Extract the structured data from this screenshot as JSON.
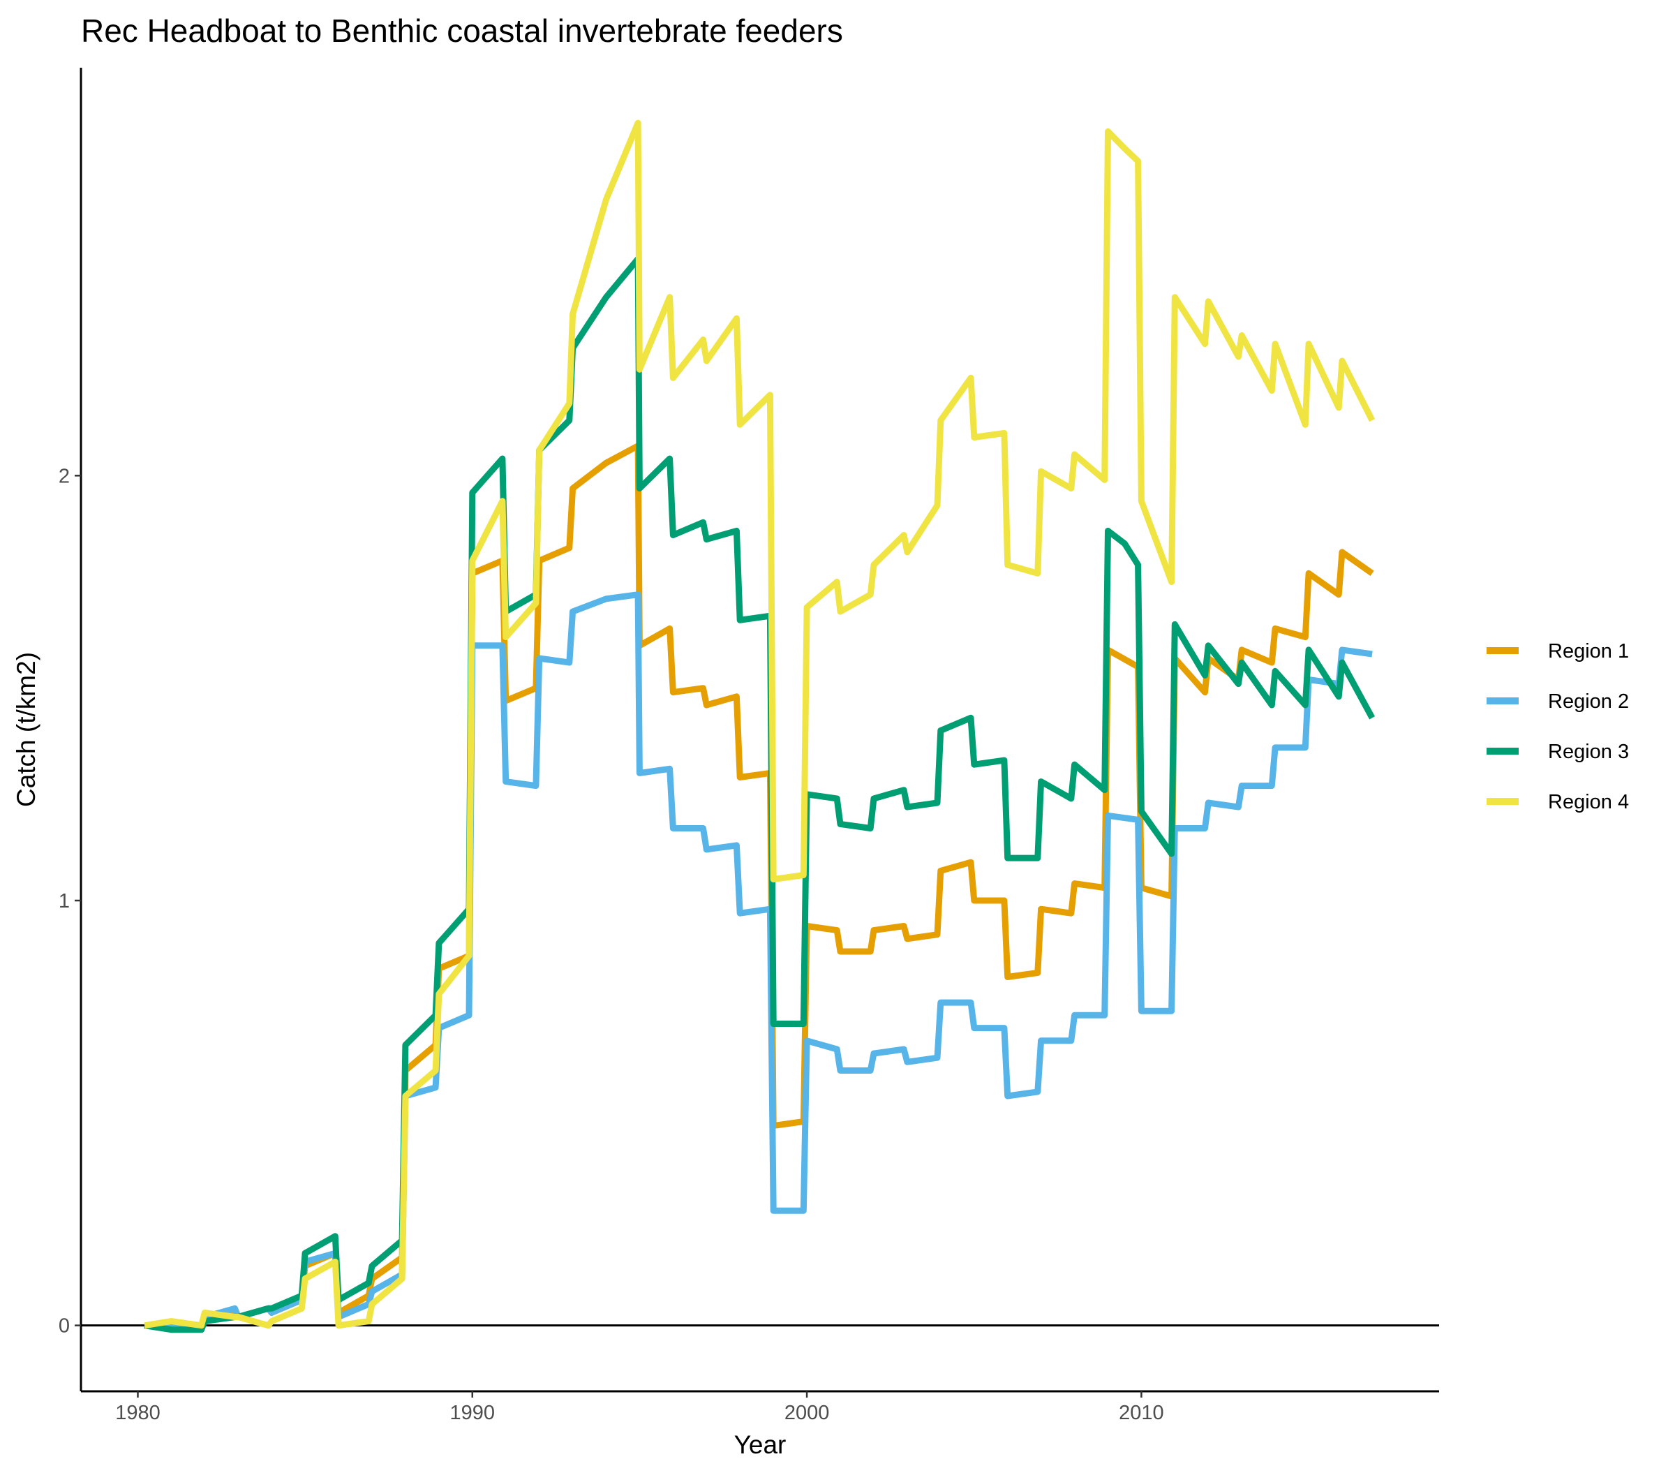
{
  "chart_data": {
    "type": "line",
    "title": "Rec Headboat to Benthic coastal invertebrate feeders",
    "xlabel": "Year",
    "ylabel": "Catch (t/km2)",
    "xlim": [
      1978.3,
      2018.9
    ],
    "ylim": [
      -0.155,
      2.96
    ],
    "xticks": [
      1980,
      1990,
      2000,
      2010
    ],
    "yticks": [
      0,
      1,
      2
    ],
    "hline": 0,
    "grid": false,
    "legend_position": "right",
    "series": [
      {
        "name": "Region 1",
        "color": "#E69F00",
        "x": [
          1980.2,
          1981.0,
          1981.9,
          1982.0,
          1982.9,
          1983.0,
          1983.9,
          1984.0,
          1984.9,
          1985.0,
          1985.9,
          1986.0,
          1986.9,
          1987.0,
          1987.9,
          1988.0,
          1988.9,
          1989.0,
          1989.9,
          1990.0,
          1990.9,
          1991.0,
          1991.9,
          1992.0,
          1992.9,
          1993.0,
          1994.0,
          1994.95,
          1995.0,
          1995.9,
          1996.0,
          1996.9,
          1997.0,
          1997.9,
          1998.0,
          1998.9,
          1999.0,
          1999.9,
          2000.0,
          2000.9,
          2001.0,
          2001.9,
          2002.0,
          2002.9,
          2003.0,
          2003.9,
          2004.0,
          2004.9,
          2005.0,
          2005.9,
          2006.0,
          2006.9,
          2007.0,
          2007.9,
          2008.0,
          2008.9,
          2009.0,
          2009.9,
          2010.0,
          2010.9,
          2011.0,
          2011.9,
          2012.0,
          2012.9,
          2013.0,
          2013.9,
          2014.0,
          2014.9,
          2015.0,
          2015.9,
          2016.0,
          2016.9
        ],
        "values": [
          0.0,
          0.0,
          0.0,
          0.02,
          0.03,
          0.02,
          0.04,
          0.03,
          0.06,
          0.14,
          0.17,
          0.03,
          0.07,
          0.11,
          0.16,
          0.6,
          0.66,
          0.84,
          0.87,
          1.77,
          1.8,
          1.47,
          1.5,
          1.8,
          1.83,
          1.97,
          2.03,
          2.07,
          1.6,
          1.64,
          1.49,
          1.5,
          1.46,
          1.48,
          1.29,
          1.3,
          0.47,
          0.48,
          0.94,
          0.93,
          0.88,
          0.88,
          0.93,
          0.94,
          0.91,
          0.92,
          1.07,
          1.09,
          1.0,
          1.0,
          0.82,
          0.83,
          0.98,
          0.97,
          1.04,
          1.03,
          1.59,
          1.55,
          1.03,
          1.01,
          1.57,
          1.49,
          1.57,
          1.52,
          1.59,
          1.56,
          1.64,
          1.62,
          1.77,
          1.72,
          1.82,
          1.77
        ]
      },
      {
        "name": "Region 2",
        "color": "#56B4E9",
        "x": [
          1980.2,
          1981.0,
          1981.9,
          1982.0,
          1982.9,
          1983.0,
          1983.9,
          1984.0,
          1984.9,
          1985.0,
          1985.9,
          1986.0,
          1986.9,
          1987.0,
          1987.9,
          1988.0,
          1988.9,
          1989.0,
          1989.9,
          1990.0,
          1990.9,
          1991.0,
          1991.9,
          1992.0,
          1992.9,
          1993.0,
          1994.0,
          1994.95,
          1995.0,
          1995.9,
          1996.0,
          1996.9,
          1997.0,
          1997.9,
          1998.0,
          1998.9,
          1999.0,
          1999.9,
          2000.0,
          2000.9,
          2001.0,
          2001.9,
          2002.0,
          2002.9,
          2003.0,
          2003.9,
          2004.0,
          2004.9,
          2005.0,
          2005.9,
          2006.0,
          2006.9,
          2007.0,
          2007.9,
          2008.0,
          2008.9,
          2009.0,
          2009.9,
          2010.0,
          2010.9,
          2011.0,
          2011.9,
          2012.0,
          2012.9,
          2013.0,
          2013.9,
          2014.0,
          2014.9,
          2015.0,
          2015.9,
          2016.0,
          2016.9
        ],
        "values": [
          0.0,
          0.0,
          0.0,
          0.02,
          0.04,
          0.02,
          0.04,
          0.03,
          0.06,
          0.15,
          0.17,
          0.02,
          0.05,
          0.08,
          0.12,
          0.54,
          0.56,
          0.7,
          0.73,
          1.6,
          1.6,
          1.28,
          1.27,
          1.57,
          1.56,
          1.68,
          1.71,
          1.72,
          1.3,
          1.31,
          1.17,
          1.17,
          1.12,
          1.13,
          0.97,
          0.98,
          0.27,
          0.27,
          0.67,
          0.65,
          0.6,
          0.6,
          0.64,
          0.65,
          0.62,
          0.63,
          0.76,
          0.76,
          0.7,
          0.7,
          0.54,
          0.55,
          0.67,
          0.67,
          0.73,
          0.73,
          1.2,
          1.19,
          0.74,
          0.74,
          1.17,
          1.17,
          1.23,
          1.22,
          1.27,
          1.27,
          1.36,
          1.36,
          1.52,
          1.51,
          1.59,
          1.58
        ]
      },
      {
        "name": "Region 3",
        "color": "#009E73",
        "x": [
          1980.2,
          1981.0,
          1981.9,
          1982.0,
          1982.9,
          1983.0,
          1983.9,
          1984.0,
          1984.9,
          1985.0,
          1985.9,
          1986.0,
          1986.9,
          1987.0,
          1987.9,
          1988.0,
          1988.9,
          1989.0,
          1989.9,
          1990.0,
          1990.9,
          1991.0,
          1991.9,
          1992.0,
          1992.9,
          1993.0,
          1994.0,
          1994.95,
          1995.0,
          1995.9,
          1996.0,
          1996.9,
          1997.0,
          1997.9,
          1998.0,
          1998.9,
          1999.0,
          1999.9,
          2000.0,
          2000.9,
          2001.0,
          2001.9,
          2002.0,
          2002.9,
          2003.0,
          2003.9,
          2004.0,
          2004.9,
          2005.0,
          2005.9,
          2006.0,
          2006.9,
          2007.0,
          2007.9,
          2008.0,
          2008.9,
          2009.0,
          2009.5,
          2009.9,
          2010.0,
          2010.9,
          2011.0,
          2011.9,
          2012.0,
          2012.9,
          2013.0,
          2013.9,
          2014.0,
          2014.9,
          2015.0,
          2015.9,
          2016.0,
          2016.9
        ],
        "values": [
          0.0,
          -0.01,
          -0.01,
          0.01,
          0.02,
          0.02,
          0.04,
          0.04,
          0.07,
          0.17,
          0.21,
          0.06,
          0.1,
          0.14,
          0.2,
          0.66,
          0.73,
          0.9,
          0.98,
          1.96,
          2.04,
          1.68,
          1.72,
          2.06,
          2.13,
          2.3,
          2.42,
          2.51,
          1.97,
          2.04,
          1.86,
          1.89,
          1.85,
          1.87,
          1.66,
          1.67,
          0.71,
          0.71,
          1.25,
          1.24,
          1.18,
          1.17,
          1.24,
          1.26,
          1.22,
          1.23,
          1.4,
          1.43,
          1.32,
          1.33,
          1.1,
          1.1,
          1.28,
          1.24,
          1.32,
          1.26,
          1.87,
          1.84,
          1.79,
          1.21,
          1.11,
          1.65,
          1.53,
          1.6,
          1.51,
          1.56,
          1.46,
          1.54,
          1.46,
          1.59,
          1.48,
          1.56,
          1.43
        ]
      },
      {
        "name": "Region 4",
        "color": "#F0E442",
        "x": [
          1980.2,
          1981.0,
          1981.9,
          1982.0,
          1982.9,
          1983.0,
          1983.9,
          1984.0,
          1984.9,
          1985.0,
          1985.9,
          1986.0,
          1986.9,
          1987.0,
          1987.9,
          1988.0,
          1988.9,
          1989.0,
          1989.9,
          1990.0,
          1990.9,
          1991.0,
          1991.9,
          1992.0,
          1992.9,
          1993.0,
          1994.0,
          1994.95,
          1995.0,
          1995.9,
          1996.0,
          1996.9,
          1997.0,
          1997.9,
          1998.0,
          1998.9,
          1999.0,
          1999.9,
          2000.0,
          2000.9,
          2001.0,
          2001.9,
          2002.0,
          2002.9,
          2003.0,
          2003.9,
          2004.0,
          2004.9,
          2005.0,
          2005.9,
          2006.0,
          2006.9,
          2007.0,
          2007.9,
          2008.0,
          2008.9,
          2009.0,
          2009.5,
          2009.9,
          2010.0,
          2010.9,
          2011.0,
          2011.9,
          2012.0,
          2012.9,
          2013.0,
          2013.9,
          2014.0,
          2014.9,
          2015.0,
          2015.9,
          2016.0,
          2016.9
        ],
        "values": [
          0.0,
          0.01,
          0.0,
          0.03,
          0.02,
          0.02,
          0.0,
          0.01,
          0.04,
          0.11,
          0.15,
          0.0,
          0.01,
          0.05,
          0.11,
          0.54,
          0.6,
          0.78,
          0.87,
          1.8,
          1.94,
          1.62,
          1.7,
          2.06,
          2.17,
          2.38,
          2.65,
          2.83,
          2.25,
          2.42,
          2.23,
          2.32,
          2.27,
          2.37,
          2.12,
          2.19,
          1.05,
          1.06,
          1.69,
          1.75,
          1.68,
          1.72,
          1.79,
          1.86,
          1.82,
          1.93,
          2.13,
          2.23,
          2.09,
          2.1,
          1.79,
          1.77,
          2.01,
          1.97,
          2.05,
          1.99,
          2.81,
          2.77,
          2.74,
          1.94,
          1.75,
          2.42,
          2.31,
          2.41,
          2.28,
          2.33,
          2.2,
          2.31,
          2.12,
          2.31,
          2.16,
          2.27,
          2.13
        ]
      }
    ]
  }
}
